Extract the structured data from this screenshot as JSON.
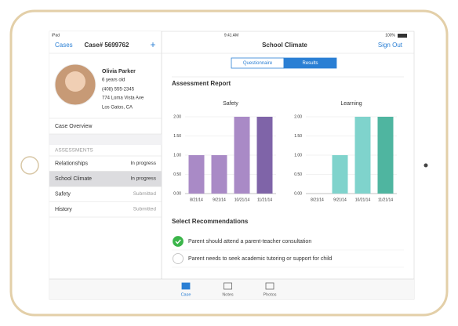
{
  "status_bar": {
    "device": "iPad",
    "time": "9:41 AM",
    "battery": "100%"
  },
  "sidebar": {
    "header": {
      "back": "Cases",
      "title": "Case# 5699762",
      "add": "+"
    },
    "profile": {
      "name": "Olivia Parker",
      "age": "6 years old",
      "phone": "(408) 555-2345",
      "address": "774 Loma Vista Ave",
      "city": "Los Gatos, CA"
    },
    "overview": "Case Overview",
    "section_title": "ASSESSMENTS",
    "selected": 1,
    "assessments": [
      {
        "name": "Relationships",
        "status": "In progress"
      },
      {
        "name": "School Climate",
        "status": "In progress"
      },
      {
        "name": "Safety",
        "status": "Submitted"
      },
      {
        "name": "History",
        "status": "Submitted"
      }
    ]
  },
  "main": {
    "header": {
      "title": "School Climate",
      "sign_out": "Sign Out"
    },
    "tabs": [
      "Questionnaire",
      "Results"
    ],
    "active_tab": 1,
    "report": {
      "title": "Assessment Report",
      "charts": [
        {
          "type": "bar",
          "title": "Safety",
          "categories": [
            "8/21/14",
            "9/21/14",
            "10/21/14",
            "11/21/14"
          ],
          "values": [
            1,
            1,
            2,
            2
          ],
          "colors": [
            "#a98ac6",
            "#a98ac6",
            "#a98ac6",
            "#7f64a8"
          ],
          "ylim": [
            0,
            2
          ],
          "yticks": [
            {
              "value": 0,
              "label": "0.00"
            },
            {
              "value": 0.5,
              "label": "0.50"
            },
            {
              "value": 1,
              "label": "1.00"
            },
            {
              "value": 1.5,
              "label": "1.50"
            },
            {
              "value": 2,
              "label": "2.00"
            }
          ],
          "grid": true
        },
        {
          "type": "bar",
          "title": "Learning",
          "categories": [
            "8/21/14",
            "9/21/14",
            "10/21/14",
            "11/21/14"
          ],
          "values": [
            0,
            1,
            2,
            2
          ],
          "colors": [
            "#7fd3cc",
            "#7fd3cc",
            "#7fd3cc",
            "#4fb5a0"
          ],
          "ylim": [
            0,
            2
          ],
          "yticks": [
            {
              "value": 0,
              "label": "0.00"
            },
            {
              "value": 0.5,
              "label": "0.50"
            },
            {
              "value": 1,
              "label": "1.00"
            },
            {
              "value": 1.5,
              "label": "1.50"
            },
            {
              "value": 2,
              "label": "2.00"
            }
          ],
          "grid": true
        }
      ]
    },
    "recommendations": {
      "title": "Select Recommendations",
      "items": [
        {
          "text": "Parent should attend a parent-teacher consultation",
          "checked": true
        },
        {
          "text": "Parent needs to seek academic tutoring or support for child",
          "checked": false
        }
      ]
    }
  },
  "tab_bar": {
    "items": [
      "Case",
      "Notes",
      "Photos"
    ],
    "active": 0
  }
}
